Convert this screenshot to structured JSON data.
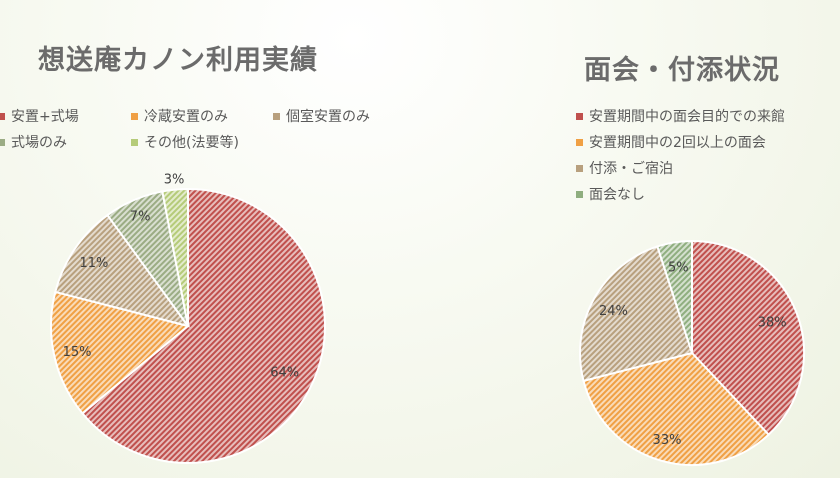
{
  "chart_data": [
    {
      "type": "pie",
      "title": "想送庵カノン利用実績",
      "categories": [
        "安置+式場",
        "冷蔵安置のみ",
        "個室安置のみ",
        "式場のみ",
        "その他(法要等)"
      ],
      "values": [
        64,
        15,
        11,
        7,
        3
      ],
      "labels": [
        "64%",
        "15%",
        "11%",
        "7%",
        "3%"
      ],
      "colors": [
        "#c0504d",
        "#f0a044",
        "#b8a07e",
        "#9bac84",
        "#b5cb79"
      ],
      "legend_position": "top"
    },
    {
      "type": "pie",
      "title": "面会・付添状況",
      "categories": [
        "安置期間中の面会目的での来館",
        "安置期間中の2回以上の面会",
        "付添・ご宿泊",
        "面会なし"
      ],
      "values": [
        38,
        33,
        24,
        5
      ],
      "labels": [
        "38%",
        "33%",
        "24%",
        "5%"
      ],
      "colors": [
        "#c0504d",
        "#f0a044",
        "#b8a07e",
        "#8fae7f"
      ],
      "legend_position": "top"
    }
  ]
}
